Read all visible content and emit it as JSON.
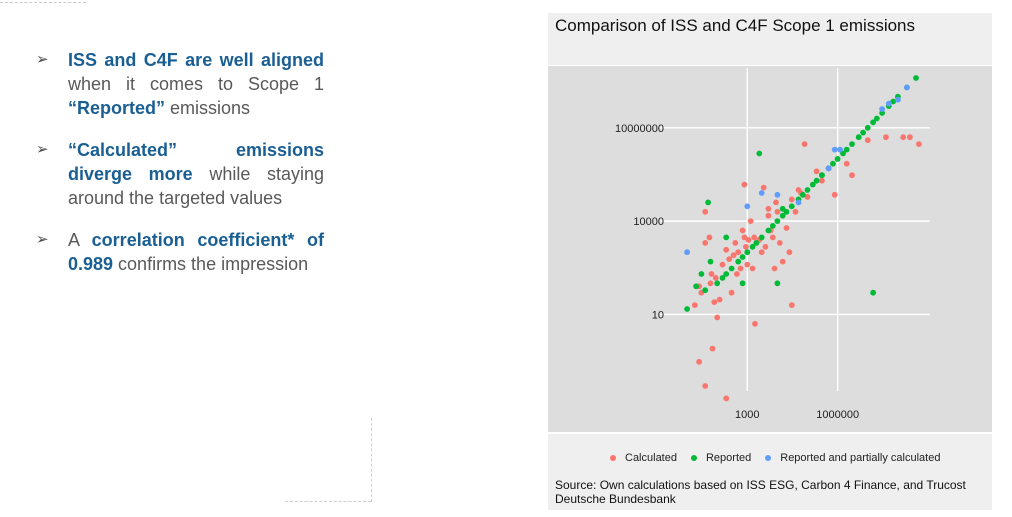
{
  "bullets": [
    {
      "parts": [
        {
          "text": "ISS and C4F are well aligned",
          "hl": true
        },
        {
          "text": " when it comes to Scope 1 ",
          "hl": false
        },
        {
          "text": "“Reported”",
          "hl": true
        },
        {
          "text": " emissions",
          "hl": false
        }
      ]
    },
    {
      "parts": [
        {
          "text": "“Calculated” emissions diverge more",
          "hl": true
        },
        {
          "text": " while staying around the targeted values",
          "hl": false
        }
      ]
    },
    {
      "parts": [
        {
          "text": "A ",
          "hl": false
        },
        {
          "text": "correlation coefficient* of 0.989",
          "hl": true
        },
        {
          "text": " confirms the impression",
          "hl": false
        }
      ]
    }
  ],
  "colors": {
    "calculated": "#f8766d",
    "reported": "#00ba38",
    "partial": "#619cff",
    "panel": "#dddddd",
    "grid": "#ffffff",
    "highlight": "#1a5f93"
  },
  "source": [
    "Source: Own calculations based on  ISS ESG, Carbon 4 Finance, and Trucost",
    "Deutsche Bundesbank"
  ],
  "chart_data": {
    "type": "scatter",
    "title": "Comparison of ISS and C4F Scope 1 emissions",
    "xlabel": "",
    "ylabel": "",
    "xscale": "log10",
    "yscale": "log10",
    "xlim": [
      5,
      1000000000
    ],
    "ylim": [
      0.05,
      400000000
    ],
    "xticks": [
      {
        "value": 1000,
        "label": "1000"
      },
      {
        "value": 1000000,
        "label": "1000000"
      }
    ],
    "yticks": [
      {
        "value": 10,
        "label": "10"
      },
      {
        "value": 10000,
        "label": "10000"
      },
      {
        "value": 10000000,
        "label": "10000000"
      }
    ],
    "grid": true,
    "legend_position": "bottom",
    "series": [
      {
        "name": "Calculated",
        "points": [
          [
            18,
            20
          ],
          [
            25,
            80
          ],
          [
            30,
            50
          ],
          [
            40,
            2000
          ],
          [
            55,
            3000
          ],
          [
            60,
            100
          ],
          [
            65,
            200
          ],
          [
            80,
            25
          ],
          [
            90,
            150
          ],
          [
            100,
            8
          ],
          [
            120,
            30
          ],
          [
            150,
            400
          ],
          [
            200,
            1200
          ],
          [
            250,
            600
          ],
          [
            300,
            50
          ],
          [
            350,
            800
          ],
          [
            400,
            2000
          ],
          [
            450,
            200
          ],
          [
            500,
            1000
          ],
          [
            600,
            300
          ],
          [
            700,
            5000
          ],
          [
            800,
            3000
          ],
          [
            900,
            1500
          ],
          [
            1000,
            400
          ],
          [
            1100,
            2500
          ],
          [
            1300,
            10000
          ],
          [
            1500,
            300
          ],
          [
            1700,
            3000
          ],
          [
            2000,
            2000
          ],
          [
            2500,
            2500
          ],
          [
            3000,
            1000
          ],
          [
            3500,
            120000
          ],
          [
            4000,
            1500
          ],
          [
            5000,
            15000
          ],
          [
            6000,
            5000
          ],
          [
            7000,
            3000
          ],
          [
            8000,
            300
          ],
          [
            9000,
            40000
          ],
          [
            10000,
            20000
          ],
          [
            12000,
            2000
          ],
          [
            15000,
            500
          ],
          [
            20000,
            6000
          ],
          [
            25000,
            1000
          ],
          [
            30000,
            50000
          ],
          [
            40000,
            20000
          ],
          [
            50000,
            100000
          ],
          [
            60000,
            80000
          ],
          [
            80000,
            3000000
          ],
          [
            100000,
            60000
          ],
          [
            200000,
            400000
          ],
          [
            300000,
            200000
          ],
          [
            500000,
            500000
          ],
          [
            800000,
            70000
          ],
          [
            2000000,
            700000
          ],
          [
            3000000,
            300000
          ],
          [
            10000000,
            4000000
          ],
          [
            40000000,
            5000000
          ],
          [
            150000000,
            5000000
          ],
          [
            250000000,
            5000000
          ],
          [
            500000000,
            3000000
          ],
          [
            25,
            0.3
          ],
          [
            40,
            0.05
          ],
          [
            70,
            0.8
          ],
          [
            1800,
            5
          ],
          [
            30000,
            20
          ],
          [
            200,
            0.02
          ],
          [
            40,
            20000
          ],
          [
            800,
            150000
          ],
          [
            5000,
            25000
          ]
        ]
      },
      {
        "name": "Reported",
        "points": [
          [
            10,
            15
          ],
          [
            20,
            80
          ],
          [
            40,
            60
          ],
          [
            60,
            500
          ],
          [
            100,
            100
          ],
          [
            150,
            150
          ],
          [
            200,
            200
          ],
          [
            300,
            300
          ],
          [
            500,
            500
          ],
          [
            700,
            700
          ],
          [
            1000,
            1000
          ],
          [
            1500,
            1500
          ],
          [
            2000,
            2000
          ],
          [
            3000,
            3000
          ],
          [
            5000,
            5000
          ],
          [
            7000,
            7000
          ],
          [
            10000,
            10000
          ],
          [
            15000,
            15000
          ],
          [
            20000,
            20000
          ],
          [
            30000,
            30000
          ],
          [
            50000,
            50000
          ],
          [
            70000,
            70000
          ],
          [
            100000,
            100000
          ],
          [
            150000,
            150000
          ],
          [
            200000,
            200000
          ],
          [
            300000,
            300000
          ],
          [
            500000,
            500000
          ],
          [
            700000,
            700000
          ],
          [
            1000000,
            1000000
          ],
          [
            1500000,
            1500000
          ],
          [
            2000000,
            2000000
          ],
          [
            3000000,
            3000000
          ],
          [
            5000000,
            5000000
          ],
          [
            7000000,
            7000000
          ],
          [
            10000000,
            10000000
          ],
          [
            15000000,
            15000000
          ],
          [
            20000000,
            20000000
          ],
          [
            30000000,
            30000000
          ],
          [
            50000000,
            50000000
          ],
          [
            70000000,
            70000000
          ],
          [
            100000000,
            100000000
          ],
          [
            200000000,
            200000000
          ],
          [
            400000000,
            400000000
          ],
          [
            50,
            40000
          ],
          [
            200,
            3000
          ],
          [
            2500,
            1500000
          ],
          [
            15000,
            25000
          ],
          [
            30,
            200
          ],
          [
            700,
            100
          ],
          [
            10000,
            100
          ],
          [
            15000000,
            50
          ],
          [
            300000,
            300000
          ]
        ]
      },
      {
        "name": "Reported and partially calculated",
        "points": [
          [
            10,
            1000
          ],
          [
            1000,
            30000
          ],
          [
            3000,
            80000
          ],
          [
            10000,
            70000
          ],
          [
            50000,
            40000
          ],
          [
            500000,
            500000
          ],
          [
            800000,
            2000000
          ],
          [
            1200000,
            2000000
          ],
          [
            30000000,
            40000000
          ],
          [
            50000000,
            60000000
          ],
          [
            100000000,
            80000000
          ],
          [
            200000000,
            200000000
          ]
        ]
      }
    ]
  }
}
